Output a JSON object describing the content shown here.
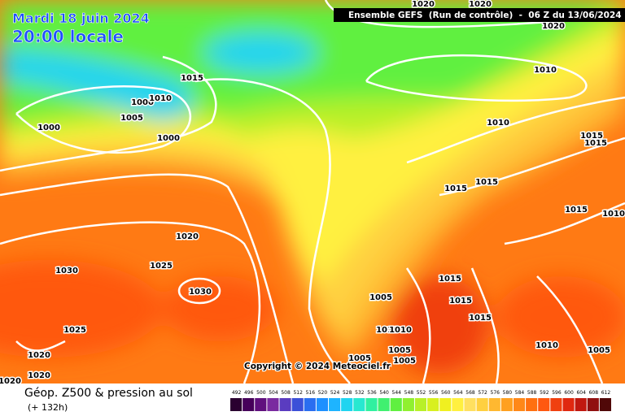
{
  "header": {
    "date": "Mardi 18 juin 2024",
    "time": "20:00 locale",
    "run": "Ensemble GEFS  (Run de contrôle)  -  06 Z du 13/06/2024"
  },
  "copyright": "Copyright © 2024 Meteociel.fr",
  "footer": {
    "title": "Géop. Z500 & pression au sol",
    "lead": "(+ 132h)"
  },
  "legend": {
    "ticks": [
      492,
      496,
      500,
      504,
      508,
      512,
      516,
      520,
      524,
      528,
      532,
      536,
      540,
      544,
      548,
      552,
      556,
      560,
      564,
      568,
      572,
      576,
      580,
      584,
      588,
      592,
      596,
      600,
      604,
      608,
      612
    ],
    "colors": [
      "#2a0030",
      "#46005a",
      "#60107e",
      "#7a2aa0",
      "#5a3cc0",
      "#3c50d8",
      "#2a6ef0",
      "#1e90ff",
      "#1eb4ff",
      "#20d4f0",
      "#28e8d0",
      "#30f0a0",
      "#40f070",
      "#60f040",
      "#90f030",
      "#b8f028",
      "#d8f020",
      "#f0f020",
      "#fff040",
      "#ffe060",
      "#ffd040",
      "#ffb830",
      "#ffa020",
      "#ff8818",
      "#ff7010",
      "#ff5810",
      "#f04010",
      "#e02810",
      "#c01810",
      "#901010",
      "#500808"
    ]
  },
  "isobars": [
    "1020",
    "1020",
    "1020",
    "1015",
    "1000",
    "1010",
    "1005",
    "1000",
    "1000",
    "1010",
    "1010",
    "1015",
    "1015",
    "1015",
    "1015",
    "1015",
    "1010",
    "1020",
    "1030",
    "1025",
    "1030",
    "1005",
    "1015",
    "1015",
    "1015",
    "1025",
    "1010",
    "1010",
    "1005",
    "1005",
    "1005",
    "1020",
    "1020",
    "1020",
    "1010",
    "1005"
  ]
}
